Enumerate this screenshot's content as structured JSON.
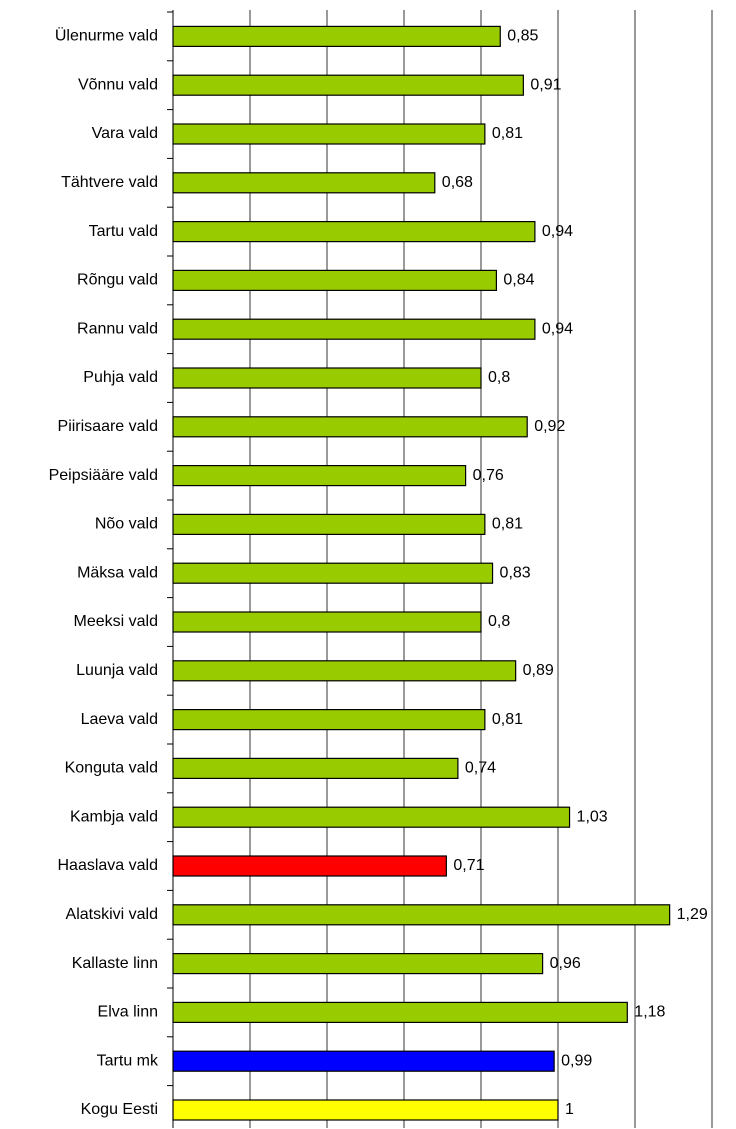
{
  "chart_data": {
    "type": "barh",
    "categories": [
      "Ülenurme vald",
      "Võnnu vald",
      "Vara vald",
      "Tähtvere vald",
      "Tartu vald",
      "Rõngu vald",
      "Rannu vald",
      "Puhja vald",
      "Piirisaare vald",
      "Peipsiääre vald",
      "Nõo vald",
      "Mäksa vald",
      "Meeksi vald",
      "Luunja vald",
      "Laeva vald",
      "Konguta vald",
      "Kambja vald",
      "Haaslava vald",
      "Alatskivi vald",
      "Kallaste linn",
      "Elva linn",
      "Tartu mk",
      "Kogu Eesti"
    ],
    "values": [
      0.85,
      0.91,
      0.81,
      0.68,
      0.94,
      0.84,
      0.94,
      0.8,
      0.92,
      0.76,
      0.81,
      0.83,
      0.8,
      0.89,
      0.81,
      0.74,
      1.03,
      0.71,
      1.29,
      0.96,
      1.18,
      0.99,
      1
    ],
    "value_labels": [
      "0,85",
      "0,91",
      "0,81",
      "0,68",
      "0,94",
      "0,84",
      "0,94",
      "0,8",
      "0,92",
      "0,76",
      "0,81",
      "0,83",
      "0,8",
      "0,89",
      "0,81",
      "0,74",
      "1,03",
      "0,71",
      "1,29",
      "0,96",
      "1,18",
      "0,99",
      "1"
    ],
    "colors": [
      "#99cc00",
      "#99cc00",
      "#99cc00",
      "#99cc00",
      "#99cc00",
      "#99cc00",
      "#99cc00",
      "#99cc00",
      "#99cc00",
      "#99cc00",
      "#99cc00",
      "#99cc00",
      "#99cc00",
      "#99cc00",
      "#99cc00",
      "#99cc00",
      "#99cc00",
      "#ff0000",
      "#99cc00",
      "#99cc00",
      "#99cc00",
      "#0000ff",
      "#ffff00"
    ],
    "xlim": [
      0,
      1.4
    ],
    "xticks": [
      0,
      0.2,
      0.4,
      0.6,
      0.8,
      1,
      1.2,
      1.4
    ],
    "grid": true
  }
}
